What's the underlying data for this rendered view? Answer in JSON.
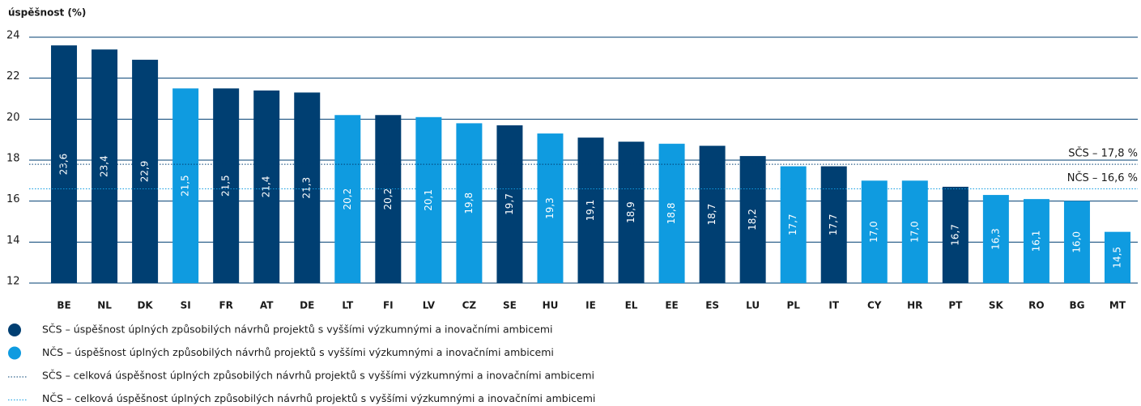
{
  "chart_data": {
    "type": "bar",
    "y_label": "úspěšnost (%)",
    "categories": [
      "BE",
      "NL",
      "DK",
      "SI",
      "FR",
      "AT",
      "DE",
      "LT",
      "FI",
      "LV",
      "CZ",
      "SE",
      "HU",
      "IE",
      "EL",
      "EE",
      "ES",
      "LU",
      "PL",
      "IT",
      "CY",
      "HR",
      "PT",
      "SK",
      "RO",
      "BG",
      "MT"
    ],
    "series": [
      {
        "name": "SČS – úspěšnost úplných způsobilých návrhů projektů s vyššími výzkumnými a inovačními ambicemi",
        "color": "#003f72",
        "values": [
          23.6,
          23.4,
          22.9,
          null,
          21.5,
          21.4,
          21.3,
          null,
          20.2,
          null,
          null,
          19.7,
          null,
          19.1,
          18.9,
          null,
          18.7,
          18.2,
          null,
          17.7,
          null,
          null,
          16.7,
          null,
          null,
          null,
          null
        ],
        "value_labels": [
          "23,6",
          "23,4",
          "22,9",
          null,
          "21,5",
          "21,4",
          "21,3",
          null,
          "20,2",
          null,
          null,
          "19,7",
          null,
          "19,1",
          "18,9",
          null,
          "18,7",
          "18,2",
          null,
          "17,7",
          null,
          null,
          "16,7",
          null,
          null,
          null,
          null
        ]
      },
      {
        "name": "NČS – úspěšnost úplných způsobilých návrhů projektů s vyššími výzkumnými a inovačními ambicemi",
        "color": "#0f9be0",
        "values": [
          null,
          null,
          null,
          21.5,
          null,
          null,
          null,
          20.2,
          null,
          20.1,
          19.8,
          null,
          19.3,
          null,
          null,
          18.8,
          null,
          null,
          17.7,
          null,
          17.0,
          17.0,
          null,
          16.3,
          16.1,
          16.0,
          14.5
        ],
        "value_labels": [
          null,
          null,
          null,
          "21,5",
          null,
          null,
          null,
          "20,2",
          null,
          "20,1",
          "19,8",
          null,
          "19,3",
          null,
          null,
          "18,8",
          null,
          null,
          "17,7",
          null,
          "17,0",
          "17,0",
          null,
          "16,3",
          "16,1",
          "16,0",
          "14,5"
        ]
      }
    ],
    "reference_lines": [
      {
        "name": "SČS – celková úspěšnost úplných způsobilých návrhů projektů s vyššími výzkumnými a inovačními ambicemi",
        "value": 17.8,
        "label": "SČS – 17,8 %",
        "color": "#003f72"
      },
      {
        "name": "NČS – celková úspěšnost úplných způsobilých návrhů projektů s vyššími výzkumnými a inovačními ambicemi",
        "value": 16.6,
        "label": "NČS – 16,6 %",
        "color": "#0f9be0"
      }
    ],
    "ylim": [
      12,
      24
    ],
    "yticks": [
      12,
      14,
      16,
      18,
      20,
      22,
      24
    ],
    "grid": true
  }
}
